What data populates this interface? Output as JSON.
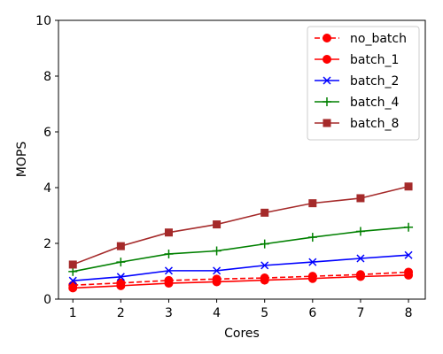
{
  "chart_data": {
    "type": "line",
    "title": "",
    "xlabel": "Cores",
    "ylabel": "MOPS",
    "x": [
      1,
      2,
      3,
      4,
      5,
      6,
      7,
      8
    ],
    "xlim": [
      0.7,
      8.35
    ],
    "ylim": [
      0,
      10
    ],
    "xticks": [
      1,
      2,
      3,
      4,
      5,
      6,
      7,
      8
    ],
    "yticks": [
      0,
      2,
      4,
      6,
      8,
      10
    ],
    "grid": false,
    "legend": "upper-right",
    "series": [
      {
        "name": "no_batch",
        "color": "#ff0000",
        "line_style": "dashed",
        "marker": "circle",
        "values": [
          0.5,
          0.58,
          0.67,
          0.72,
          0.76,
          0.82,
          0.88,
          0.97
        ]
      },
      {
        "name": "batch_1",
        "color": "#ff0000",
        "line_style": "solid",
        "marker": "circle",
        "values": [
          0.4,
          0.48,
          0.57,
          0.62,
          0.68,
          0.74,
          0.81,
          0.86
        ]
      },
      {
        "name": "batch_2",
        "color": "#0000ff",
        "line_style": "solid",
        "marker": "x",
        "values": [
          0.66,
          0.8,
          1.02,
          1.02,
          1.21,
          1.33,
          1.46,
          1.58
        ]
      },
      {
        "name": "batch_4",
        "color": "#008000",
        "line_style": "solid",
        "marker": "plus",
        "values": [
          0.99,
          1.33,
          1.62,
          1.73,
          1.98,
          2.22,
          2.43,
          2.58
        ]
      },
      {
        "name": "batch_8",
        "color": "#a52a2a",
        "line_style": "solid",
        "marker": "square",
        "values": [
          1.24,
          1.9,
          2.39,
          2.68,
          3.1,
          3.44,
          3.62,
          4.04
        ]
      }
    ]
  }
}
